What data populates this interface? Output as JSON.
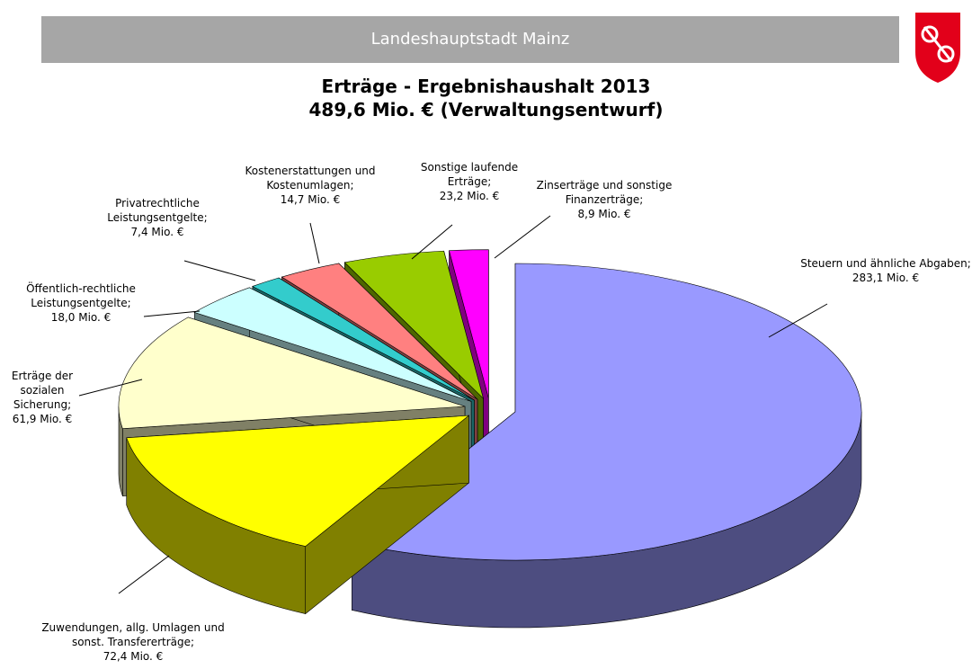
{
  "header": {
    "title": "Landeshauptstadt Mainz"
  },
  "chart_data": {
    "type": "pie",
    "title": "Erträge - Ergebnishaushalt 2013",
    "subtitle": "489,6 Mio. € (Verwaltungsentwurf)",
    "categories": [
      "Steuern und ähnliche Abgaben;",
      "Zuwendungen, allg. Umlagen und sonst. Transfererträge;",
      "Erträge der sozialen Sicherung;",
      "Öffentlich-rechtliche Leistungsentgelte;",
      "Privatrechtliche Leistungsentgelte;",
      "Kostenerstattungen und Kostenumlagen;",
      "Sonstige laufende Erträge;",
      "Zinserträge und sonstige Finanzerträge;"
    ],
    "values": [
      283.1,
      72.4,
      61.9,
      18.0,
      7.4,
      14.7,
      23.2,
      8.9
    ],
    "value_labels": [
      "283,1 Mio. €",
      "72,4 Mio. €",
      "61,9 Mio. €",
      "18,0 Mio. €",
      "7,4 Mio. €",
      "14,7 Mio. €",
      "23,2 Mio. €",
      "8,9 Mio. €"
    ],
    "colors": [
      "#9999ff",
      "#ffff00",
      "#ffffcc",
      "#ccffff",
      "#33cccc",
      "#ff8080",
      "#99cc00",
      "#ff00ff"
    ]
  }
}
